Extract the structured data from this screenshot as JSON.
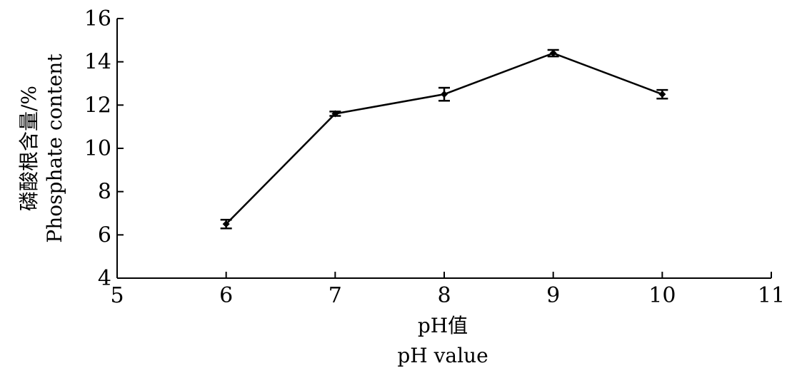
{
  "chart_data": {
    "type": "line",
    "xlabel": [
      "pH值",
      "pH value"
    ],
    "ylabel": [
      "磷酸根含量/%",
      "Phosphate content"
    ],
    "xlim": [
      5,
      11
    ],
    "ylim": [
      4,
      16
    ],
    "xticks": [
      5,
      6,
      7,
      8,
      9,
      10,
      11
    ],
    "yticks": [
      4,
      6,
      8,
      10,
      12,
      14,
      16
    ],
    "grid": false,
    "series": [
      {
        "x": [
          6,
          7,
          8,
          9,
          10
        ],
        "y": [
          6.5,
          11.6,
          12.5,
          14.4,
          12.5
        ],
        "error": [
          0.2,
          0.1,
          0.3,
          0.15,
          0.2
        ]
      }
    ]
  }
}
